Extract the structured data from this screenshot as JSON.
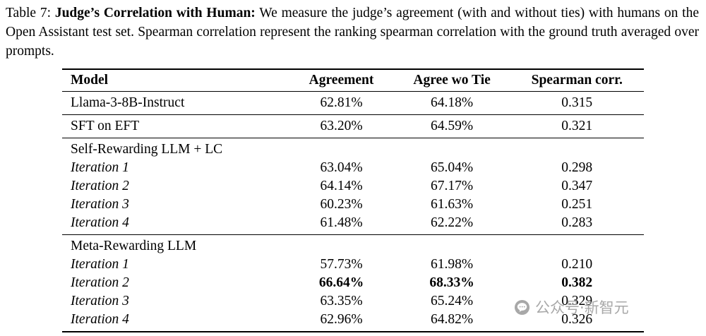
{
  "caption": {
    "prefix": "Table 7: ",
    "bold": "Judge’s Correlation with Human:",
    "text": " We measure the judge’s agreement (with and without ties) with humans on the Open Assistant test set. Spearman correlation represent the ranking spearman correlation with the ground truth averaged over prompts."
  },
  "table": {
    "headers": [
      "Model",
      "Agreement",
      "Agree wo Tie",
      "Spearman corr."
    ],
    "sections": [
      {
        "rows": [
          {
            "label": "Llama-3-8B-Instruct",
            "italic": false,
            "indent": false,
            "bold": false,
            "values": [
              "62.81%",
              "64.18%",
              "0.315"
            ]
          }
        ]
      },
      {
        "rows": [
          {
            "label": "SFT on EFT",
            "italic": false,
            "indent": false,
            "bold": false,
            "values": [
              "63.20%",
              "64.59%",
              "0.321"
            ]
          }
        ]
      },
      {
        "rows": [
          {
            "label": "Self-Rewarding LLM + LC",
            "italic": false,
            "indent": false,
            "bold": false,
            "values": [
              "",
              "",
              ""
            ]
          },
          {
            "label": "Iteration 1",
            "italic": true,
            "indent": true,
            "bold": false,
            "values": [
              "63.04%",
              "65.04%",
              "0.298"
            ]
          },
          {
            "label": "Iteration 2",
            "italic": true,
            "indent": true,
            "bold": false,
            "values": [
              "64.14%",
              "67.17%",
              "0.347"
            ]
          },
          {
            "label": "Iteration 3",
            "italic": true,
            "indent": true,
            "bold": false,
            "values": [
              "60.23%",
              "61.63%",
              "0.251"
            ]
          },
          {
            "label": "Iteration 4",
            "italic": true,
            "indent": true,
            "bold": false,
            "values": [
              "61.48%",
              "62.22%",
              "0.283"
            ]
          }
        ]
      },
      {
        "rows": [
          {
            "label": "Meta-Rewarding LLM",
            "italic": false,
            "indent": false,
            "bold": false,
            "values": [
              "",
              "",
              ""
            ]
          },
          {
            "label": "Iteration 1",
            "italic": true,
            "indent": true,
            "bold": false,
            "values": [
              "57.73%",
              "61.98%",
              "0.210"
            ]
          },
          {
            "label": "Iteration 2",
            "italic": true,
            "indent": true,
            "bold": true,
            "values": [
              "66.64%",
              "68.33%",
              "0.382"
            ]
          },
          {
            "label": "Iteration 3",
            "italic": true,
            "indent": true,
            "bold": false,
            "values": [
              "63.35%",
              "65.24%",
              "0.329"
            ]
          },
          {
            "label": "Iteration 4",
            "italic": true,
            "indent": true,
            "bold": false,
            "values": [
              "62.96%",
              "64.82%",
              "0.326"
            ]
          }
        ]
      }
    ]
  },
  "watermark": {
    "icon": "wechat-icon",
    "text": "公众号·新智元",
    "color": "#9f9f9f"
  }
}
